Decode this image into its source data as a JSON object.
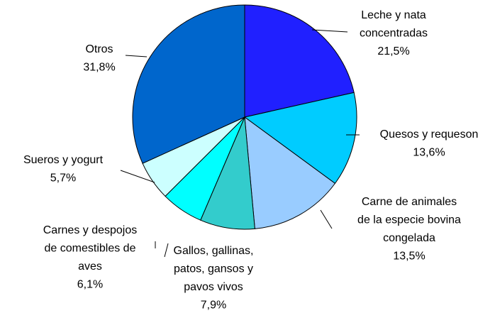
{
  "chart_data": {
    "type": "pie",
    "categories": [
      [
        "Leche y nata",
        "concentradas"
      ],
      [
        "Quesos y requeson"
      ],
      [
        "Carne de animales",
        "de la especie bovina",
        "congelada"
      ],
      [
        "Gallos, gallinas,",
        "patos, gansos y",
        "pavos vivos"
      ],
      [
        "Carnes y despojos",
        "de comestibles de",
        "aves"
      ],
      [
        "Sueros y yogurt"
      ],
      [
        "Otros"
      ]
    ],
    "values": [
      21.5,
      13.6,
      13.5,
      7.9,
      6.1,
      5.7,
      31.8
    ],
    "value_labels": [
      "21,5%",
      "13,6%",
      "13,5%",
      "7,9%",
      "6,1%",
      "5,7%",
      "31,8%"
    ],
    "colors": [
      "#2020ff",
      "#00ccff",
      "#99ccff",
      "#33cccc",
      "#00ffff",
      "#ccffff",
      "#0066cc"
    ]
  }
}
